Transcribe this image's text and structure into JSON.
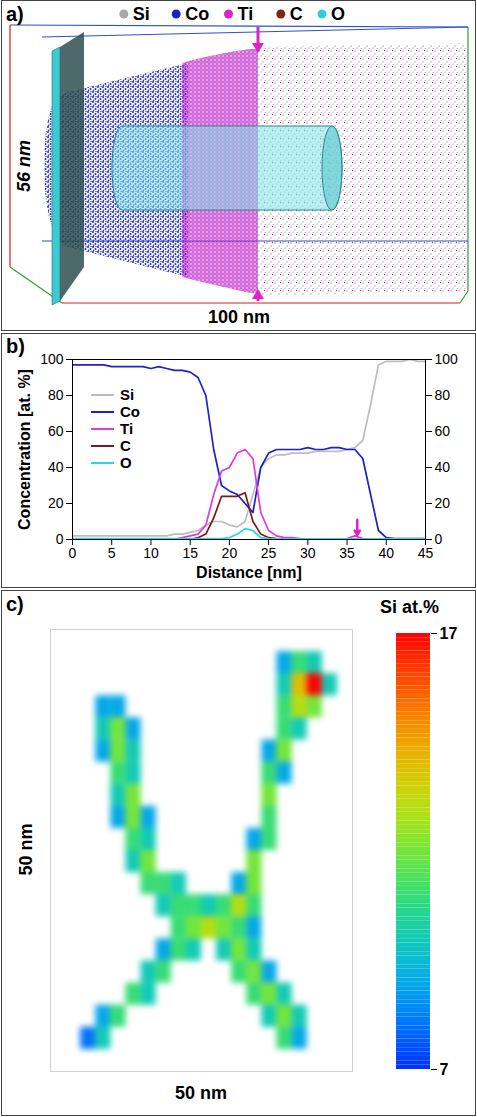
{
  "chart_data": [
    {
      "title": "a)",
      "type": "atom_map",
      "xlabel": "100 nm",
      "ylabel": "56 nm",
      "series": [
        {
          "name": "Si",
          "color": "#a8a8a8"
        },
        {
          "name": "Co",
          "color": "#1a22c8"
        },
        {
          "name": "Ti",
          "color": "#e020c8"
        },
        {
          "name": "C",
          "color": "#7a2a10"
        },
        {
          "name": "O",
          "color": "#30cfd8"
        }
      ]
    },
    {
      "title": "b)",
      "type": "line",
      "xlabel": "Distance [nm]",
      "ylabel": "Concentration [at. %]",
      "x": [
        0,
        1,
        2,
        3,
        4,
        5,
        6,
        7,
        8,
        9,
        10,
        11,
        12,
        13,
        14,
        15,
        16,
        17,
        18,
        19,
        20,
        21,
        22,
        23,
        24,
        25,
        26,
        27,
        28,
        29,
        30,
        31,
        32,
        33,
        34,
        35,
        36,
        37,
        38,
        39,
        40,
        41,
        42,
        43,
        44,
        45
      ],
      "series": [
        {
          "name": "Si",
          "color": "#bdbdbd",
          "values": [
            2,
            2,
            2,
            2,
            2,
            2,
            2,
            2,
            2,
            2,
            2,
            2,
            2,
            3,
            3,
            4,
            5,
            8,
            10,
            10,
            8,
            7,
            10,
            25,
            40,
            45,
            47,
            47,
            48,
            48,
            48,
            49,
            49,
            49,
            49,
            50,
            51,
            55,
            75,
            97,
            99,
            99,
            99,
            100,
            99,
            99
          ]
        },
        {
          "name": "Co",
          "color": "#1a22c8",
          "values": [
            97,
            97,
            97,
            97,
            97,
            96,
            96,
            96,
            96,
            96,
            95,
            96,
            95,
            94,
            94,
            93,
            90,
            80,
            50,
            30,
            27,
            25,
            20,
            15,
            40,
            48,
            50,
            50,
            50,
            50,
            51,
            50,
            50,
            51,
            51,
            50,
            50,
            45,
            25,
            5,
            1,
            0.5,
            0.5,
            0.5,
            0.5,
            0.5
          ]
        },
        {
          "name": "Ti",
          "color": "#e23ad6",
          "values": [
            0,
            0,
            0,
            0,
            0,
            0,
            0,
            0,
            0,
            0,
            0,
            0,
            0,
            0,
            1,
            2,
            3,
            8,
            25,
            38,
            40,
            48,
            50,
            45,
            15,
            5,
            2,
            1,
            1,
            0.5,
            0,
            0,
            0,
            0,
            0,
            0.5,
            2,
            0.5,
            0,
            0,
            0,
            0,
            0,
            0,
            0,
            0
          ]
        },
        {
          "name": "C",
          "color": "#7a1a1a",
          "values": [
            0,
            0,
            0,
            0,
            0,
            0,
            0,
            0,
            0,
            0,
            0,
            0,
            0,
            0,
            0,
            0,
            1,
            3,
            12,
            24,
            24,
            24,
            26,
            10,
            3,
            1,
            0.5,
            0,
            0,
            0,
            0,
            0,
            0,
            0,
            0,
            0,
            0,
            0,
            0,
            0,
            0,
            0,
            0,
            0,
            0,
            0
          ]
        },
        {
          "name": "O",
          "color": "#2ad4e6",
          "values": [
            0.5,
            0.5,
            0.5,
            0.5,
            0.5,
            0.5,
            0.5,
            0.5,
            0.5,
            0.5,
            0.5,
            0.5,
            0.5,
            0.5,
            0.5,
            0.5,
            0.5,
            0.5,
            0.5,
            0.5,
            1,
            3,
            6,
            5,
            1,
            0.5,
            0.3,
            0.3,
            0.3,
            0.3,
            0.3,
            0.3,
            0.3,
            0.3,
            0.3,
            0.3,
            0.3,
            0.3,
            0.3,
            0.3,
            0.3,
            0.3,
            0.3,
            0.3,
            0.3,
            0.3
          ]
        }
      ],
      "xlim": [
        0,
        45
      ],
      "xticks": [
        0,
        5,
        10,
        15,
        20,
        25,
        30,
        35,
        40,
        45
      ],
      "ylim": [
        0,
        100
      ],
      "yticks": [
        0,
        20,
        40,
        60,
        80,
        100
      ],
      "y2lim": [
        0,
        100
      ],
      "y2ticks": [
        0,
        20,
        40,
        60,
        80,
        100
      ],
      "grid": false,
      "legend": "center left",
      "annotations": [
        {
          "type": "arrow",
          "x": 36.3,
          "y_from": 11,
          "y_to": 2.5,
          "color": "#e020c8"
        }
      ]
    },
    {
      "title": "c)",
      "type": "heatmap",
      "xlabel": "50 nm",
      "ylabel": "50 nm",
      "xlim": [
        0,
        50
      ],
      "ylim": [
        0,
        50
      ],
      "tick_labels": false,
      "x": [
        1.25,
        3.75,
        6.25,
        8.75,
        11.25,
        13.75,
        16.25,
        18.75,
        21.25,
        23.75,
        26.25,
        28.75,
        31.25,
        33.75,
        36.25,
        38.75,
        41.25,
        43.75,
        46.25,
        48.75
      ],
      "y": [
        48.75,
        46.25,
        43.75,
        41.25,
        38.75,
        36.25,
        33.75,
        31.25,
        28.75,
        26.25,
        23.75,
        21.25,
        18.75,
        16.25,
        13.75,
        11.25,
        8.75,
        6.25,
        3.75,
        1.25
      ],
      "values": [
        [
          null,
          null,
          null,
          null,
          null,
          null,
          null,
          null,
          null,
          null,
          null,
          null,
          null,
          null,
          null,
          null,
          null,
          null,
          null,
          null
        ],
        [
          null,
          null,
          null,
          null,
          null,
          null,
          null,
          null,
          null,
          null,
          null,
          null,
          null,
          null,
          null,
          9,
          11,
          10,
          null,
          null
        ],
        [
          null,
          null,
          null,
          null,
          null,
          null,
          null,
          null,
          null,
          null,
          null,
          null,
          null,
          null,
          null,
          10,
          14,
          17,
          10,
          null
        ],
        [
          null,
          null,
          null,
          9,
          9,
          null,
          null,
          null,
          null,
          null,
          null,
          null,
          null,
          null,
          null,
          11,
          13,
          12,
          null,
          null
        ],
        [
          null,
          null,
          null,
          10,
          12,
          9,
          null,
          null,
          null,
          null,
          null,
          null,
          null,
          null,
          null,
          11,
          10,
          null,
          null,
          null
        ],
        [
          null,
          null,
          null,
          9,
          12,
          10,
          null,
          null,
          null,
          null,
          null,
          null,
          null,
          null,
          9,
          12,
          null,
          null,
          null,
          null
        ],
        [
          null,
          null,
          null,
          null,
          11,
          10,
          null,
          null,
          null,
          null,
          null,
          null,
          null,
          null,
          11,
          9,
          null,
          null,
          null,
          null
        ],
        [
          null,
          null,
          null,
          null,
          10,
          12,
          null,
          null,
          null,
          null,
          null,
          null,
          null,
          null,
          12,
          null,
          null,
          null,
          null,
          null
        ],
        [
          null,
          null,
          null,
          null,
          9,
          12,
          9,
          null,
          null,
          null,
          null,
          null,
          null,
          null,
          11,
          null,
          null,
          null,
          null,
          null
        ],
        [
          null,
          null,
          null,
          null,
          null,
          11,
          10,
          null,
          null,
          null,
          null,
          null,
          null,
          9,
          11,
          null,
          null,
          null,
          null,
          null
        ],
        [
          null,
          null,
          null,
          null,
          null,
          10,
          12,
          null,
          null,
          null,
          null,
          null,
          null,
          12,
          null,
          null,
          null,
          null,
          null,
          null
        ],
        [
          null,
          null,
          null,
          null,
          null,
          null,
          11,
          11,
          10,
          null,
          null,
          null,
          9,
          12,
          null,
          null,
          null,
          null,
          null,
          null
        ],
        [
          null,
          null,
          null,
          null,
          null,
          null,
          null,
          10,
          11,
          11,
          10,
          11,
          13,
          11,
          null,
          null,
          null,
          null,
          null,
          null
        ],
        [
          null,
          null,
          null,
          null,
          null,
          null,
          null,
          null,
          11,
          12,
          13,
          12,
          11,
          9,
          null,
          null,
          null,
          null,
          null,
          null
        ],
        [
          null,
          null,
          null,
          null,
          null,
          null,
          null,
          9,
          11,
          10,
          null,
          10,
          12,
          10,
          null,
          null,
          null,
          null,
          null,
          null
        ],
        [
          null,
          null,
          null,
          null,
          null,
          null,
          10,
          11,
          null,
          null,
          null,
          null,
          11,
          12,
          9,
          null,
          null,
          null,
          null,
          null
        ],
        [
          null,
          null,
          null,
          null,
          null,
          11,
          10,
          null,
          null,
          null,
          null,
          null,
          null,
          11,
          12,
          10,
          null,
          null,
          null,
          null
        ],
        [
          null,
          null,
          null,
          9,
          11,
          null,
          null,
          null,
          null,
          null,
          null,
          null,
          null,
          null,
          10,
          12,
          10,
          null,
          null,
          null
        ],
        [
          null,
          null,
          8,
          10,
          null,
          null,
          null,
          null,
          null,
          null,
          null,
          null,
          null,
          null,
          null,
          11,
          9,
          null,
          null,
          null
        ],
        [
          null,
          null,
          null,
          null,
          null,
          null,
          null,
          null,
          null,
          null,
          null,
          null,
          null,
          null,
          null,
          null,
          null,
          null,
          null,
          null
        ]
      ],
      "colorbar": {
        "label": "Si at.%",
        "range": [
          7,
          17
        ],
        "ticks": [
          7,
          17
        ]
      }
    }
  ]
}
